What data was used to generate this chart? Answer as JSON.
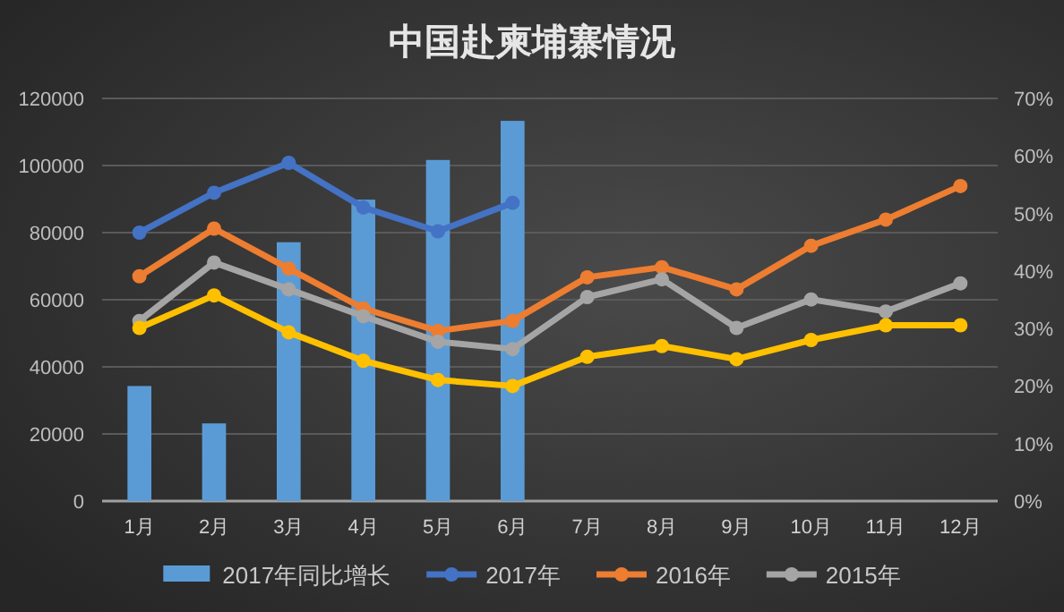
{
  "chart_data": {
    "type": "line",
    "title": "中国赴柬埔寨情况",
    "categories": [
      "1月",
      "2月",
      "3月",
      "4月",
      "5月",
      "6月",
      "7月",
      "8月",
      "9月",
      "10月",
      "11月",
      "12月"
    ],
    "series": [
      {
        "name": "2017年同比增长",
        "type": "bar",
        "axis": "y2",
        "color": "#5b9bd5",
        "values": [
          20,
          13.5,
          45,
          52.4,
          59.3,
          66.1,
          null,
          null,
          null,
          null,
          null,
          null
        ]
      },
      {
        "name": "2017年",
        "color": "#4472c4",
        "values": [
          80000,
          91900,
          100800,
          87500,
          80400,
          88900,
          null,
          null,
          null,
          null,
          null,
          null
        ]
      },
      {
        "name": "2016年",
        "color": "#ed7d31",
        "values": [
          67000,
          81200,
          69300,
          57400,
          50700,
          53700,
          66700,
          69700,
          63100,
          76100,
          83900,
          93900
        ]
      },
      {
        "name": "2015年",
        "color": "#a5a5a5",
        "values": [
          53700,
          71100,
          63100,
          55100,
          47500,
          45300,
          60800,
          66100,
          51600,
          60100,
          56500,
          64900
        ]
      },
      {
        "color": "#ffc000",
        "values": [
          51600,
          61300,
          50300,
          41800,
          36100,
          34300,
          43000,
          46200,
          42300,
          48000,
          52400,
          52400
        ]
      }
    ],
    "ylim": [
      0,
      120000
    ],
    "yticks": [
      0,
      20000,
      40000,
      60000,
      80000,
      100000,
      120000
    ],
    "y2lim": [
      0,
      70
    ],
    "y2ticks": [
      {
        "value": 0,
        "label": "0%"
      },
      {
        "value": 10,
        "label": "10%"
      },
      {
        "value": 20,
        "label": "20%"
      },
      {
        "value": 30,
        "label": "30%"
      },
      {
        "value": 40,
        "label": "40%"
      },
      {
        "value": 50,
        "label": "50%"
      },
      {
        "value": 60,
        "label": "60%"
      },
      {
        "value": 70,
        "label": "70%"
      }
    ],
    "grid": true,
    "legend": "bottom",
    "marker": "circle"
  }
}
